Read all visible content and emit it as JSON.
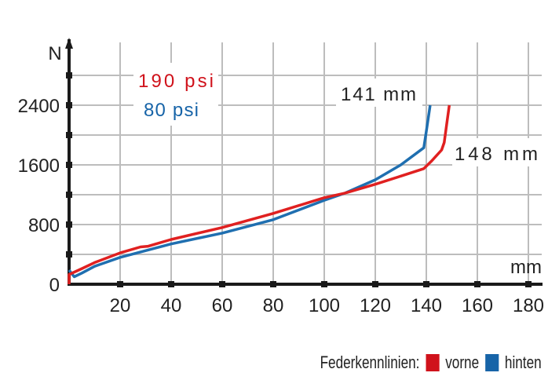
{
  "chart_data": {
    "type": "line",
    "title": "",
    "xlabel": "mm",
    "ylabel": "N",
    "xlim": [
      0,
      185
    ],
    "ylim": [
      0,
      2800
    ],
    "x_ticks": [
      20,
      40,
      60,
      80,
      100,
      120,
      140,
      160,
      180
    ],
    "y_ticks": [
      0,
      800,
      1600,
      2400
    ],
    "grid": true,
    "series": [
      {
        "name": "vorne",
        "color": "#e02020",
        "pressure_label": "190 psi",
        "end_label": "148 mm",
        "x": [
          0,
          0,
          5,
          10,
          20,
          28,
          31,
          40,
          60,
          80,
          100,
          108,
          120,
          130,
          139,
          142,
          146,
          147,
          148,
          149
        ],
        "y": [
          0,
          130,
          210,
          290,
          420,
          500,
          510,
          600,
          760,
          950,
          1160,
          1220,
          1340,
          1450,
          1550,
          1650,
          1800,
          1900,
          2150,
          2400
        ]
      },
      {
        "name": "hinten",
        "color": "#1f6fb0",
        "pressure_label": "80 psi",
        "end_label": "141 mm",
        "x": [
          0,
          2,
          5,
          10,
          20,
          40,
          60,
          80,
          100,
          108,
          120,
          130,
          139,
          140,
          141.5
        ],
        "y": [
          190,
          100,
          150,
          240,
          360,
          540,
          685,
          865,
          1125,
          1220,
          1400,
          1600,
          1830,
          2050,
          2400
        ]
      }
    ],
    "legend": {
      "title": "Federkennlinien:",
      "position": "bottom-right",
      "entries": [
        "vorne",
        "hinten"
      ]
    }
  },
  "axis": {
    "y_unit": "N",
    "x_unit": "mm",
    "y_labels": [
      "2400",
      "1600",
      "800",
      "0"
    ],
    "x_labels": [
      "20",
      "40",
      "60",
      "80",
      "100",
      "120",
      "140",
      "160",
      "180"
    ]
  },
  "annotations": {
    "front_pressure": "190 psi",
    "rear_pressure": "80 psi",
    "rear_travel": "141 mm",
    "front_travel": "148 mm"
  },
  "legend": {
    "title": "Federkennlinien:",
    "front": "vorne",
    "rear": "hinten",
    "front_color": "#d0121b",
    "rear_color": "#1764a8"
  }
}
